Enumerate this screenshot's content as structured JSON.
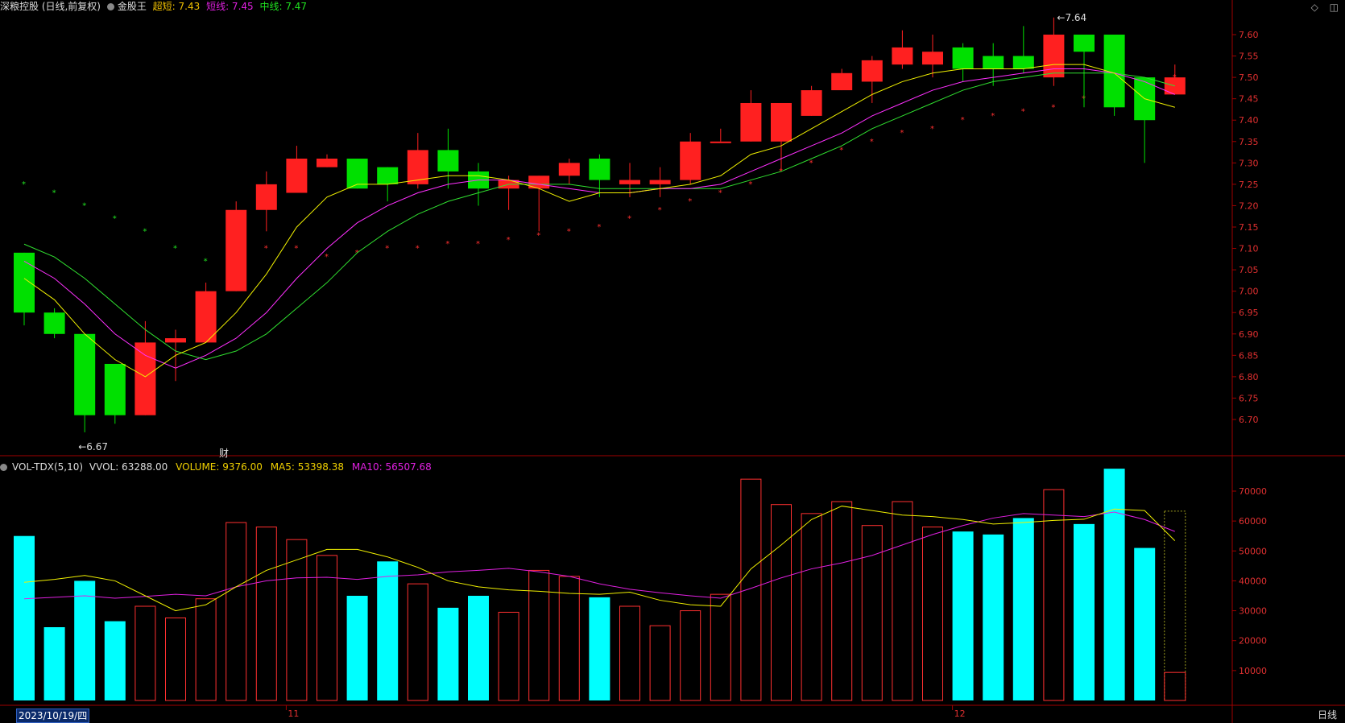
{
  "header": {
    "title": "深粮控股 (日线,前复权)",
    "indicator_name": "金股王",
    "items": [
      {
        "label": "超短: 7.43",
        "color": "#f0c000"
      },
      {
        "label": "短线: 7.45",
        "color": "#e020e0"
      },
      {
        "label": "中线: 7.47",
        "color": "#20e020"
      }
    ]
  },
  "volume_header": {
    "name": "VOL-TDX(5,10)",
    "vvol": "VVOL: 63288.00",
    "volume": "VOLUME: 9376.00",
    "ma5": "MA5: 53398.38",
    "ma10": "MA10: 56507.68"
  },
  "annotations": {
    "high_label": "7.64",
    "low_label": "←6.67",
    "cai_label": "财"
  },
  "x_axis": {
    "date_box": "2023/10/19/四",
    "month_labels": [
      {
        "label": "11",
        "index": 9
      },
      {
        "label": "12",
        "index": 31
      }
    ],
    "period": "日线"
  },
  "colors": {
    "up": "#ff2020",
    "down": "#00e000",
    "ma_short": "#f0f000",
    "ma_mid": "#ff30ff",
    "ma_long": "#30e030",
    "vol_up": "#ff3030",
    "vol_down": "#00ffff",
    "axis": "#a00000"
  },
  "chart_data": {
    "type": "candlestick",
    "price_axis": {
      "ylim": [
        6.62,
        7.64
      ],
      "ticks": [
        "7.60",
        "7.55",
        "7.50",
        "7.45",
        "7.40",
        "7.35",
        "7.30",
        "7.25",
        "7.20",
        "7.15",
        "7.10",
        "7.05",
        "7.00",
        "6.95",
        "6.90",
        "6.85",
        "6.80",
        "6.75",
        "6.70"
      ]
    },
    "volume_axis": {
      "ylim": [
        0,
        80000
      ],
      "ticks": [
        "70000",
        "60000",
        "50000",
        "40000",
        "30000",
        "20000",
        "10000"
      ]
    },
    "candles": [
      {
        "o": 7.09,
        "h": 7.09,
        "l": 6.92,
        "c": 6.95
      },
      {
        "o": 6.95,
        "h": 6.96,
        "l": 6.89,
        "c": 6.9
      },
      {
        "o": 6.9,
        "h": 6.9,
        "l": 6.67,
        "c": 6.71
      },
      {
        "o": 6.83,
        "h": 6.83,
        "l": 6.69,
        "c": 6.71
      },
      {
        "o": 6.71,
        "h": 6.93,
        "l": 6.71,
        "c": 6.88
      },
      {
        "o": 6.88,
        "h": 6.91,
        "l": 6.79,
        "c": 6.89
      },
      {
        "o": 6.88,
        "h": 7.02,
        "l": 6.88,
        "c": 7.0
      },
      {
        "o": 7.0,
        "h": 7.21,
        "l": 7.0,
        "c": 7.19
      },
      {
        "o": 7.19,
        "h": 7.28,
        "l": 7.14,
        "c": 7.25
      },
      {
        "o": 7.23,
        "h": 7.34,
        "l": 7.23,
        "c": 7.31
      },
      {
        "o": 7.29,
        "h": 7.32,
        "l": 7.29,
        "c": 7.31
      },
      {
        "o": 7.31,
        "h": 7.31,
        "l": 7.24,
        "c": 7.24
      },
      {
        "o": 7.29,
        "h": 7.29,
        "l": 7.21,
        "c": 7.25
      },
      {
        "o": 7.25,
        "h": 7.37,
        "l": 7.24,
        "c": 7.33
      },
      {
        "o": 7.33,
        "h": 7.38,
        "l": 7.24,
        "c": 7.28
      },
      {
        "o": 7.28,
        "h": 7.3,
        "l": 7.2,
        "c": 7.24
      },
      {
        "o": 7.24,
        "h": 7.27,
        "l": 7.19,
        "c": 7.26
      },
      {
        "o": 7.24,
        "h": 7.27,
        "l": 7.14,
        "c": 7.27
      },
      {
        "o": 7.27,
        "h": 7.31,
        "l": 7.25,
        "c": 7.3
      },
      {
        "o": 7.31,
        "h": 7.32,
        "l": 7.22,
        "c": 7.26
      },
      {
        "o": 7.25,
        "h": 7.3,
        "l": 7.22,
        "c": 7.26
      },
      {
        "o": 7.25,
        "h": 7.29,
        "l": 7.22,
        "c": 7.26
      },
      {
        "o": 7.26,
        "h": 7.37,
        "l": 7.25,
        "c": 7.35
      },
      {
        "o": 7.35,
        "h": 7.38,
        "l": 7.35,
        "c": 7.35
      },
      {
        "o": 7.35,
        "h": 7.47,
        "l": 7.35,
        "c": 7.44
      },
      {
        "o": 7.35,
        "h": 7.44,
        "l": 7.28,
        "c": 7.44
      },
      {
        "o": 7.41,
        "h": 7.48,
        "l": 7.41,
        "c": 7.47
      },
      {
        "o": 7.47,
        "h": 7.52,
        "l": 7.47,
        "c": 7.51
      },
      {
        "o": 7.49,
        "h": 7.55,
        "l": 7.44,
        "c": 7.54
      },
      {
        "o": 7.53,
        "h": 7.61,
        "l": 7.52,
        "c": 7.57
      },
      {
        "o": 7.53,
        "h": 7.6,
        "l": 7.5,
        "c": 7.56
      },
      {
        "o": 7.57,
        "h": 7.58,
        "l": 7.49,
        "c": 7.52
      },
      {
        "o": 7.55,
        "h": 7.58,
        "l": 7.48,
        "c": 7.52
      },
      {
        "o": 7.55,
        "h": 7.62,
        "l": 7.51,
        "c": 7.52
      },
      {
        "o": 7.5,
        "h": 7.64,
        "l": 7.48,
        "c": 7.6
      },
      {
        "o": 7.6,
        "h": 7.6,
        "l": 7.43,
        "c": 7.56
      },
      {
        "o": 7.6,
        "h": 7.6,
        "l": 7.41,
        "c": 7.43
      },
      {
        "o": 7.5,
        "h": 7.5,
        "l": 7.3,
        "c": 7.4
      },
      {
        "o": 7.46,
        "h": 7.53,
        "l": 7.46,
        "c": 7.5
      }
    ],
    "ma_short": [
      7.03,
      6.98,
      6.9,
      6.84,
      6.8,
      6.85,
      6.88,
      6.95,
      7.04,
      7.15,
      7.22,
      7.25,
      7.25,
      7.26,
      7.27,
      7.27,
      7.26,
      7.24,
      7.21,
      7.23,
      7.23,
      7.24,
      7.25,
      7.27,
      7.32,
      7.34,
      7.38,
      7.42,
      7.46,
      7.49,
      7.51,
      7.52,
      7.52,
      7.52,
      7.53,
      7.53,
      7.51,
      7.45,
      7.43
    ],
    "ma_mid": [
      7.07,
      7.03,
      6.97,
      6.9,
      6.85,
      6.82,
      6.85,
      6.89,
      6.95,
      7.03,
      7.1,
      7.16,
      7.2,
      7.23,
      7.25,
      7.26,
      7.26,
      7.25,
      7.24,
      7.23,
      7.23,
      7.24,
      7.24,
      7.25,
      7.28,
      7.31,
      7.34,
      7.37,
      7.41,
      7.44,
      7.47,
      7.49,
      7.5,
      7.51,
      7.52,
      7.52,
      7.51,
      7.49,
      7.46
    ],
    "ma_long": [
      7.11,
      7.08,
      7.03,
      6.97,
      6.91,
      6.86,
      6.84,
      6.86,
      6.9,
      6.96,
      7.02,
      7.09,
      7.14,
      7.18,
      7.21,
      7.23,
      7.25,
      7.25,
      7.25,
      7.24,
      7.24,
      7.24,
      7.24,
      7.24,
      7.26,
      7.28,
      7.31,
      7.34,
      7.38,
      7.41,
      7.44,
      7.47,
      7.49,
      7.5,
      7.51,
      7.51,
      7.51,
      7.5,
      7.48
    ],
    "sar": [
      7.25,
      7.23,
      7.2,
      7.17,
      7.14,
      7.1,
      7.07,
      7.1,
      7.1,
      7.1,
      7.08,
      7.09,
      7.1,
      7.1,
      7.11,
      7.11,
      7.12,
      7.13,
      7.14,
      7.15,
      7.17,
      7.19,
      7.21,
      7.23,
      7.25,
      7.28,
      7.3,
      7.33,
      7.35,
      7.37,
      7.38,
      7.4,
      7.41,
      7.42,
      7.43,
      7.45,
      7.47,
      7.48,
      7.5
    ],
    "sar_colors": [
      "g",
      "g",
      "g",
      "g",
      "g",
      "g",
      "g",
      "r",
      "r",
      "r",
      "r",
      "r",
      "r",
      "r",
      "r",
      "r",
      "r",
      "r",
      "r",
      "r",
      "r",
      "r",
      "r",
      "r",
      "r",
      "r",
      "r",
      "r",
      "r",
      "r",
      "r",
      "r",
      "r",
      "r",
      "r",
      "r",
      "r",
      "r",
      "r"
    ],
    "volumes": [
      55000,
      24500,
      40000,
      26500,
      31500,
      27600,
      34000,
      59500,
      58000,
      53800,
      48500,
      35000,
      46500,
      39000,
      31000,
      35000,
      29500,
      43500,
      41500,
      34500,
      31500,
      25000,
      30000,
      35500,
      74000,
      65500,
      62500,
      66500,
      58500,
      66500,
      58000,
      56500,
      55500,
      61000,
      70500,
      59000,
      77500,
      51000,
      63288
    ],
    "volumes_current": 9376,
    "vol_ma5": [
      39500,
      40500,
      41800,
      40000,
      35000,
      30000,
      32000,
      38000,
      43500,
      47000,
      50500,
      50500,
      48000,
      44500,
      40000,
      38000,
      37000,
      36500,
      35800,
      35500,
      36200,
      33500,
      32000,
      31500,
      44000,
      52000,
      60500,
      65000,
      63500,
      62000,
      61500,
      60500,
      59000,
      59500,
      60200,
      60600,
      64000,
      63500,
      53400
    ],
    "vol_ma10": [
      34000,
      34500,
      35000,
      34200,
      34800,
      35500,
      35000,
      38000,
      40000,
      41000,
      41200,
      40500,
      41500,
      42000,
      43000,
      43500,
      44200,
      43000,
      41500,
      39000,
      37200,
      36000,
      35000,
      34200,
      37500,
      41000,
      44000,
      46000,
      48500,
      52000,
      55500,
      58500,
      61000,
      62500,
      62000,
      61500,
      63000,
      60500,
      56500
    ]
  }
}
